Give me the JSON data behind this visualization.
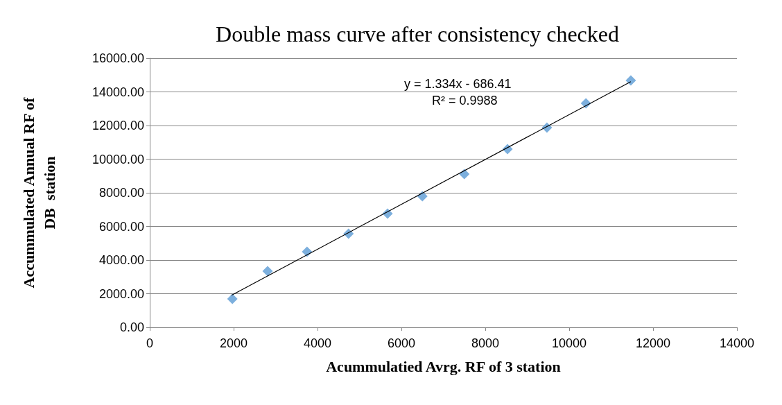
{
  "chart_data": {
    "type": "scatter",
    "title": "Double mass curve after consistency checked",
    "xlabel": "Acummulatied Avrg. RF of 3 station",
    "ylabel": "Accummulated Annual RF of\nDB  station",
    "annotations": [
      "y = 1.334x - 686.41",
      "R² = 0.9988"
    ],
    "xlim": [
      0,
      14000
    ],
    "xticks": [
      0,
      2000,
      4000,
      6000,
      8000,
      10000,
      12000,
      14000
    ],
    "ylim": [
      0,
      16000
    ],
    "yticks": [
      {
        "value": 0,
        "label": "0.00"
      },
      {
        "value": 2000,
        "label": "2000.00"
      },
      {
        "value": 4000,
        "label": "4000.00"
      },
      {
        "value": 6000,
        "label": "6000.00"
      },
      {
        "value": 8000,
        "label": "8000.00"
      },
      {
        "value": 10000,
        "label": "10000.00"
      },
      {
        "value": 12000,
        "label": "12000.00"
      },
      {
        "value": 14000,
        "label": "14000.00"
      },
      {
        "value": 16000,
        "label": "16000.00"
      }
    ],
    "grid": "y",
    "series": [
      {
        "color": "#5b9bd5",
        "marker": "diamond",
        "x": [
          1970,
          2810,
          3750,
          4740,
          5670,
          6500,
          7500,
          8530,
          9470,
          10400,
          11470
        ],
        "values": [
          1690,
          3340,
          4500,
          5570,
          6760,
          7790,
          9110,
          10600,
          11880,
          13320,
          14680
        ]
      },
      {
        "type": "line",
        "color": "#000000",
        "marker": "none",
        "line_style": "solid",
        "x": [
          1950,
          11470
        ],
        "values": [
          1910,
          14610
        ]
      }
    ]
  }
}
